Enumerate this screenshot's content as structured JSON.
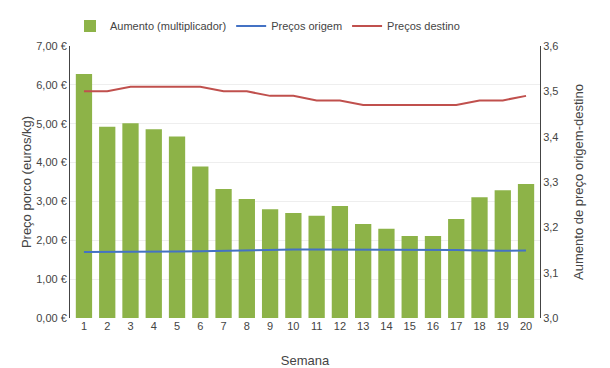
{
  "chart_data": {
    "type": "bar",
    "categories": [
      "1",
      "2",
      "3",
      "4",
      "5",
      "6",
      "7",
      "8",
      "9",
      "10",
      "11",
      "12",
      "13",
      "14",
      "15",
      "16",
      "17",
      "18",
      "19",
      "20"
    ],
    "xlabel": "Semana",
    "ylabel": "Preço porco (euros/kg)",
    "y2label": "Aumento de preço origem-destino",
    "ylim": [
      0.0,
      7.0
    ],
    "yticks": [
      {
        "value": 0.0,
        "label": "0,00 €"
      },
      {
        "value": 1.0,
        "label": "1,00 €"
      },
      {
        "value": 2.0,
        "label": "2,00 €"
      },
      {
        "value": 3.0,
        "label": "3,00 €"
      },
      {
        "value": 4.0,
        "label": "4,00 €"
      },
      {
        "value": 5.0,
        "label": "5,00 €"
      },
      {
        "value": 6.0,
        "label": "6,00 €"
      },
      {
        "value": 7.0,
        "label": "7,00 €"
      }
    ],
    "y2lim": [
      3.0,
      3.6
    ],
    "y2ticks": [
      {
        "value": 3.0,
        "label": "3,0"
      },
      {
        "value": 3.1,
        "label": "3,1"
      },
      {
        "value": 3.2,
        "label": "3,2"
      },
      {
        "value": 3.3,
        "label": "3,3"
      },
      {
        "value": 3.4,
        "label": "3,4"
      },
      {
        "value": 3.5,
        "label": "3,5"
      },
      {
        "value": 3.6,
        "label": "3,6"
      }
    ],
    "grid": true,
    "legend": "upper left",
    "series": [
      {
        "name": "Aumento (multiplicador)",
        "type": "bar",
        "color": "#8db348",
        "values": [
          6.28,
          4.92,
          5.01,
          4.86,
          4.67,
          3.9,
          3.32,
          3.06,
          2.8,
          2.7,
          2.63,
          2.88,
          2.42,
          2.3,
          2.11,
          2.11,
          2.55,
          3.11,
          3.29,
          3.45
        ]
      },
      {
        "name": "Preços origem",
        "type": "line",
        "color": "#4472c4",
        "values": [
          1.7,
          1.7,
          1.71,
          1.71,
          1.71,
          1.72,
          1.73,
          1.75,
          1.76,
          1.76,
          1.76,
          1.76,
          1.76,
          1.76,
          1.76,
          1.75,
          1.75,
          1.74,
          1.73,
          1.74
        ]
      },
      {
        "name": "Preços destino",
        "type": "line",
        "color": "#c0504d",
        "axis": "y2",
        "values": [
          3.5,
          3.5,
          3.51,
          3.51,
          3.51,
          3.51,
          3.5,
          3.5,
          3.49,
          3.49,
          3.48,
          3.48,
          3.47,
          3.47,
          3.47,
          3.47,
          3.47,
          3.48,
          3.48,
          3.49
        ]
      }
    ]
  }
}
